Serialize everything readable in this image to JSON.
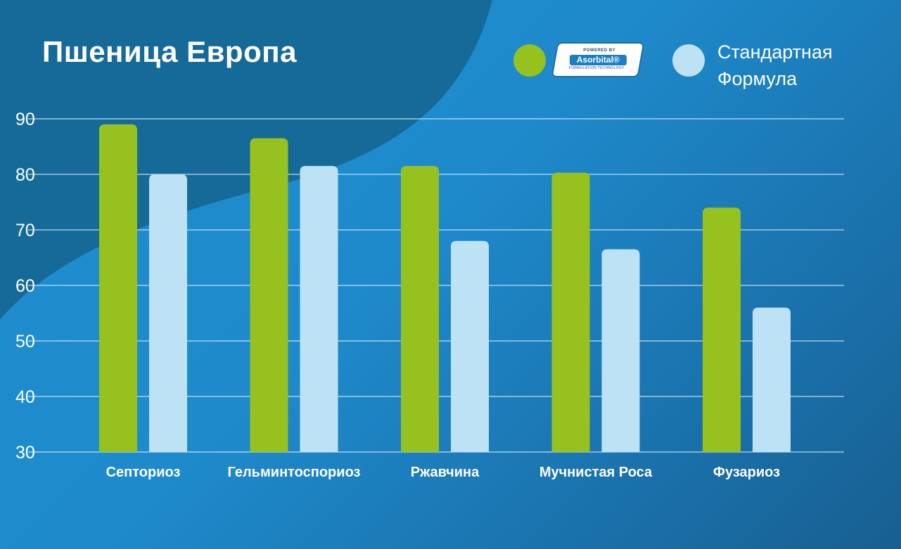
{
  "colors": {
    "accent_green": "#96c11f",
    "light_blue": "#bde2f6",
    "grid": "#d9eef9"
  },
  "legend": {
    "series1_badge": {
      "top": "POWERED BY",
      "brand": "Asorbital®",
      "bottom": "FORMULATION TECHNOLOGY"
    },
    "series2_label": "Стандартная\nФормула"
  },
  "chart_data": {
    "type": "bar",
    "title": "Пшеница Европа",
    "categories": [
      "Септориоз",
      "Гельминтоспориоз",
      "Ржавчина",
      "Мучнистая Роса",
      "Фузариоз"
    ],
    "series": [
      {
        "name": "Asorbital",
        "color": "#96c11f",
        "values": [
          89,
          86.5,
          81.5,
          80.3,
          74
        ]
      },
      {
        "name": "Стандартная Формула",
        "color": "#bde2f6",
        "values": [
          80,
          81.5,
          68,
          66.5,
          56
        ]
      }
    ],
    "yticks": [
      30,
      40,
      50,
      60,
      70,
      80,
      90
    ],
    "ylim": [
      30,
      90
    ],
    "xlabel": "",
    "ylabel": "",
    "grid": true,
    "legend_position": "top-right"
  }
}
